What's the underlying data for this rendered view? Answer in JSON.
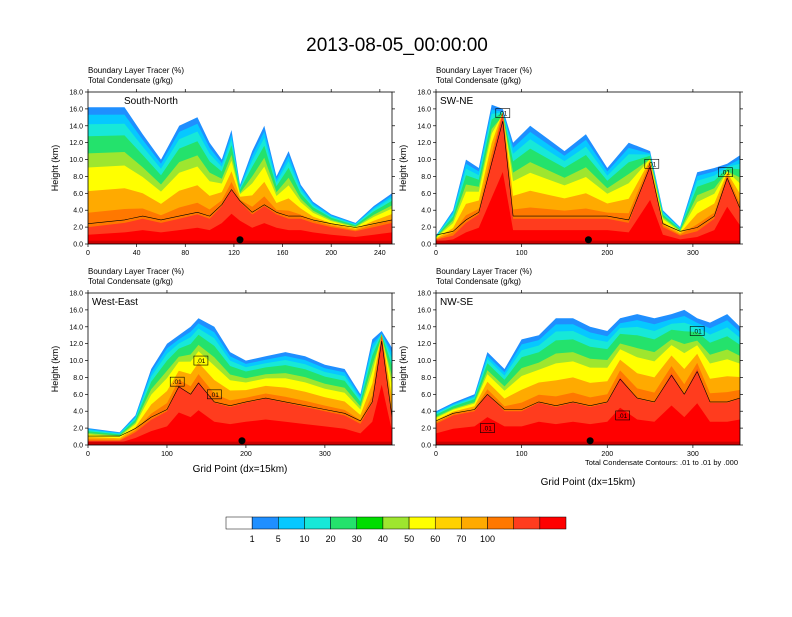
{
  "title": "2013-08-05_00:00:00",
  "panel_label_line1": "Boundary Layer Tracer   (%)",
  "panel_label_line2": "Total Condensate   (g/kg)",
  "contour_note": "Total Condensate Contours: .01 to .01 by .000",
  "contour_label": ".01",
  "chart_data": [
    {
      "type": "heatmap",
      "subtitle": "South-North",
      "ylabel": "Height (km)",
      "xlabel": "",
      "xlim": [
        0,
        250
      ],
      "xticks": [
        0,
        40,
        80,
        120,
        160,
        200,
        240
      ],
      "ylim": [
        0,
        18
      ],
      "yticks": [
        0.0,
        2.0,
        4.0,
        6.0,
        8.0,
        10.0,
        12.0,
        14.0,
        16.0,
        18.0
      ],
      "ytick_labels": [
        "0.0",
        "2.0",
        "4.0",
        "6.0",
        "8.0",
        "10.0",
        "12.0",
        "14.0",
        "16.0",
        "18.0"
      ],
      "marker_x": 125,
      "contour_label_positions": [],
      "columns": [
        {
          "x": 0,
          "top": 16.2,
          "core": 2.0
        },
        {
          "x": 30,
          "top": 16.2,
          "core": 2.5
        },
        {
          "x": 45,
          "top": 13.0,
          "core": 3.0
        },
        {
          "x": 60,
          "top": 10.0,
          "core": 2.5
        },
        {
          "x": 75,
          "top": 14.0,
          "core": 3.0
        },
        {
          "x": 90,
          "top": 15.0,
          "core": 3.5
        },
        {
          "x": 100,
          "top": 12.0,
          "core": 3.0
        },
        {
          "x": 110,
          "top": 10.0,
          "core": 4.5
        },
        {
          "x": 118,
          "top": 13.5,
          "core": 6.5
        },
        {
          "x": 125,
          "top": 7.0,
          "core": 5.0
        },
        {
          "x": 135,
          "top": 11.0,
          "core": 3.5
        },
        {
          "x": 145,
          "top": 14.0,
          "core": 4.5
        },
        {
          "x": 155,
          "top": 8.0,
          "core": 3.5
        },
        {
          "x": 165,
          "top": 11.0,
          "core": 3.0
        },
        {
          "x": 175,
          "top": 7.0,
          "core": 3.0
        },
        {
          "x": 185,
          "top": 5.0,
          "core": 2.5
        },
        {
          "x": 200,
          "top": 3.5,
          "core": 2.0
        },
        {
          "x": 220,
          "top": 2.5,
          "core": 1.5
        },
        {
          "x": 235,
          "top": 4.5,
          "core": 2.0
        },
        {
          "x": 250,
          "top": 6.0,
          "core": 2.5
        }
      ]
    },
    {
      "type": "heatmap",
      "subtitle": "SW-NE",
      "ylabel": "Height (km)",
      "xlabel": "",
      "xlim": [
        0,
        355
      ],
      "xticks": [
        0,
        100,
        200,
        300
      ],
      "ylim": [
        0,
        18
      ],
      "yticks": [
        0.0,
        2.0,
        4.0,
        6.0,
        8.0,
        10.0,
        12.0,
        14.0,
        16.0,
        18.0
      ],
      "ytick_labels": [
        "0.0",
        "2.0",
        "4.0",
        "6.0",
        "8.0",
        "10.0",
        "12.0",
        "14.0",
        "16.0",
        "18.0"
      ],
      "marker_x": 178,
      "contour_label_positions": [
        {
          "x": 78,
          "y": 15.5
        },
        {
          "x": 252,
          "y": 9.5
        },
        {
          "x": 338,
          "y": 8.5
        }
      ],
      "columns": [
        {
          "x": 0,
          "top": 1.0,
          "core": 0.5
        },
        {
          "x": 20,
          "top": 4.0,
          "core": 1.0
        },
        {
          "x": 35,
          "top": 10.0,
          "core": 2.5
        },
        {
          "x": 50,
          "top": 9.0,
          "core": 3.5
        },
        {
          "x": 65,
          "top": 16.5,
          "core": 10.0
        },
        {
          "x": 78,
          "top": 16.0,
          "core": 15.5
        },
        {
          "x": 90,
          "top": 12.0,
          "core": 3.0
        },
        {
          "x": 110,
          "top": 14.0,
          "core": 3.0
        },
        {
          "x": 130,
          "top": 12.5,
          "core": 3.0
        },
        {
          "x": 150,
          "top": 11.0,
          "core": 3.0
        },
        {
          "x": 175,
          "top": 13.0,
          "core": 3.0
        },
        {
          "x": 200,
          "top": 9.0,
          "core": 3.0
        },
        {
          "x": 225,
          "top": 12.0,
          "core": 2.5
        },
        {
          "x": 250,
          "top": 11.0,
          "core": 9.5
        },
        {
          "x": 265,
          "top": 4.0,
          "core": 2.0
        },
        {
          "x": 285,
          "top": 2.0,
          "core": 1.0
        },
        {
          "x": 305,
          "top": 8.5,
          "core": 1.5
        },
        {
          "x": 325,
          "top": 9.0,
          "core": 3.0
        },
        {
          "x": 340,
          "top": 9.5,
          "core": 8.0
        },
        {
          "x": 355,
          "top": 10.5,
          "core": 4.0
        }
      ]
    },
    {
      "type": "heatmap",
      "subtitle": "West-East",
      "ylabel": "Height (km)",
      "xlabel": "Grid Point (dx=15km)",
      "xlim": [
        0,
        385
      ],
      "xticks": [
        0,
        100,
        200,
        300
      ],
      "ylim": [
        0,
        18
      ],
      "yticks": [
        0.0,
        2.0,
        4.0,
        6.0,
        8.0,
        10.0,
        12.0,
        14.0,
        16.0,
        18.0
      ],
      "ytick_labels": [
        "0.0",
        "2.0",
        "4.0",
        "6.0",
        "8.0",
        "10.0",
        "12.0",
        "14.0",
        "16.0",
        "18.0"
      ],
      "marker_x": 195,
      "contour_label_positions": [
        {
          "x": 143,
          "y": 10.0
        },
        {
          "x": 113,
          "y": 7.5
        },
        {
          "x": 160,
          "y": 6.0
        }
      ],
      "columns": [
        {
          "x": 0,
          "top": 2.0,
          "core": 0.5
        },
        {
          "x": 40,
          "top": 1.5,
          "core": 0.5
        },
        {
          "x": 60,
          "top": 3.5,
          "core": 1.5
        },
        {
          "x": 80,
          "top": 9.0,
          "core": 3.0
        },
        {
          "x": 100,
          "top": 12.0,
          "core": 4.0
        },
        {
          "x": 115,
          "top": 13.0,
          "core": 7.0
        },
        {
          "x": 130,
          "top": 14.0,
          "core": 6.0
        },
        {
          "x": 140,
          "top": 15.0,
          "core": 7.5
        },
        {
          "x": 160,
          "top": 14.0,
          "core": 5.0
        },
        {
          "x": 180,
          "top": 11.0,
          "core": 4.5
        },
        {
          "x": 200,
          "top": 10.0,
          "core": 5.0
        },
        {
          "x": 225,
          "top": 10.5,
          "core": 5.5
        },
        {
          "x": 250,
          "top": 11.0,
          "core": 5.0
        },
        {
          "x": 275,
          "top": 10.5,
          "core": 4.5
        },
        {
          "x": 300,
          "top": 9.5,
          "core": 4.0
        },
        {
          "x": 325,
          "top": 9.0,
          "core": 3.5
        },
        {
          "x": 345,
          "top": 6.0,
          "core": 2.5
        },
        {
          "x": 360,
          "top": 12.5,
          "core": 5.0
        },
        {
          "x": 372,
          "top": 13.5,
          "core": 13.0
        },
        {
          "x": 385,
          "top": 11.5,
          "core": 3.0
        }
      ]
    },
    {
      "type": "heatmap",
      "subtitle": "NW-SE",
      "ylabel": "Height (km)",
      "xlabel": "Grid Point (dx=15km)",
      "xlim": [
        0,
        355
      ],
      "xticks": [
        0,
        100,
        200,
        300
      ],
      "ylim": [
        0,
        18
      ],
      "yticks": [
        0.0,
        2.0,
        4.0,
        6.0,
        8.0,
        10.0,
        12.0,
        14.0,
        16.0,
        18.0
      ],
      "ytick_labels": [
        "0.0",
        "2.0",
        "4.0",
        "6.0",
        "8.0",
        "10.0",
        "12.0",
        "14.0",
        "16.0",
        "18.0"
      ],
      "marker_x": 180,
      "contour_label_positions": [
        {
          "x": 60,
          "y": 2.0
        },
        {
          "x": 218,
          "y": 3.5
        },
        {
          "x": 305,
          "y": 13.5
        }
      ],
      "columns": [
        {
          "x": 0,
          "top": 4.0,
          "core": 2.5
        },
        {
          "x": 20,
          "top": 5.0,
          "core": 3.5
        },
        {
          "x": 45,
          "top": 6.0,
          "core": 4.0
        },
        {
          "x": 60,
          "top": 11.0,
          "core": 6.0
        },
        {
          "x": 80,
          "top": 9.0,
          "core": 4.0
        },
        {
          "x": 100,
          "top": 12.5,
          "core": 4.0
        },
        {
          "x": 120,
          "top": 13.0,
          "core": 5.0
        },
        {
          "x": 140,
          "top": 15.0,
          "core": 4.5
        },
        {
          "x": 160,
          "top": 15.0,
          "core": 5.0
        },
        {
          "x": 180,
          "top": 14.0,
          "core": 4.5
        },
        {
          "x": 200,
          "top": 13.5,
          "core": 5.0
        },
        {
          "x": 215,
          "top": 15.0,
          "core": 8.0
        },
        {
          "x": 235,
          "top": 15.5,
          "core": 5.5
        },
        {
          "x": 255,
          "top": 15.0,
          "core": 5.0
        },
        {
          "x": 275,
          "top": 15.5,
          "core": 8.5
        },
        {
          "x": 290,
          "top": 16.0,
          "core": 6.0
        },
        {
          "x": 305,
          "top": 15.0,
          "core": 9.0
        },
        {
          "x": 320,
          "top": 14.5,
          "core": 5.0
        },
        {
          "x": 340,
          "top": 15.5,
          "core": 5.0
        },
        {
          "x": 355,
          "top": 14.0,
          "core": 5.5
        }
      ]
    }
  ],
  "colorbar": {
    "colors": [
      "#ffffff",
      "#1f8fff",
      "#06c8ff",
      "#17e8d8",
      "#24e26c",
      "#00dd00",
      "#9ee62f",
      "#ffff00",
      "#ffd100",
      "#ffaa00",
      "#ff7800",
      "#ff3c1e",
      "#ff0000"
    ],
    "labels": [
      "1",
      "5",
      "10",
      "20",
      "30",
      "40",
      "50",
      "60",
      "70",
      "100"
    ]
  }
}
